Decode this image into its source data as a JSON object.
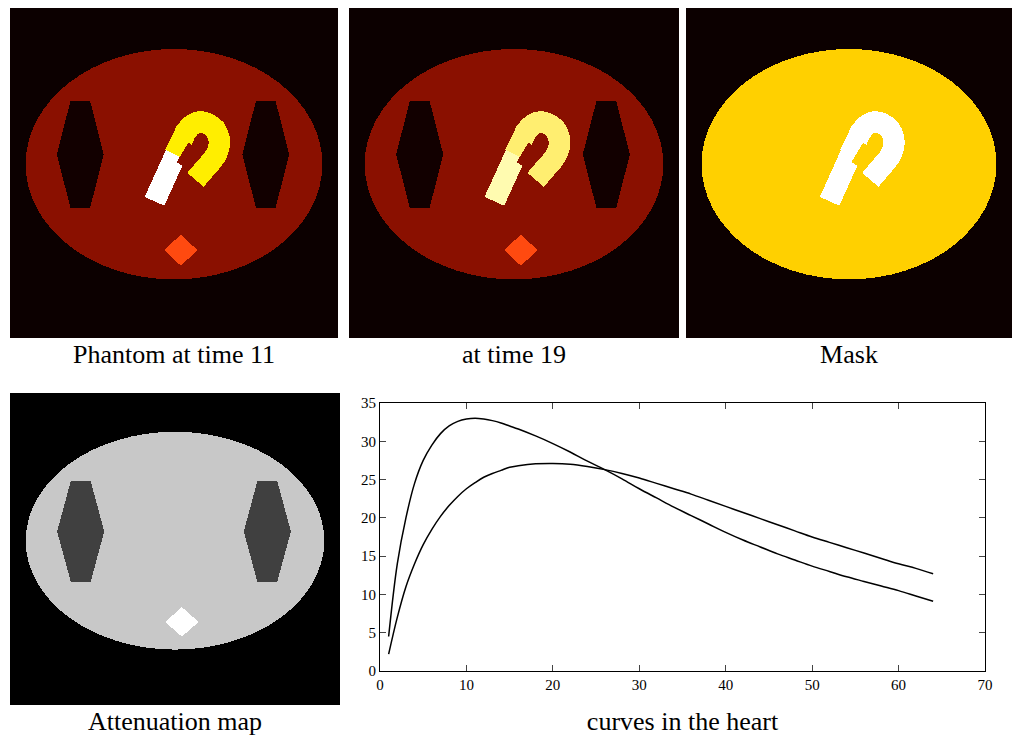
{
  "panels": [
    {
      "caption": "Phantom at time 11"
    },
    {
      "caption": "at time 19"
    },
    {
      "caption": "Mask"
    },
    {
      "caption": "Attenuation map"
    }
  ],
  "chart_data": {
    "type": "line",
    "title": "curves in the heart",
    "xlim": [
      0,
      70
    ],
    "ylim": [
      0,
      35
    ],
    "xticks": [
      0,
      10,
      20,
      30,
      40,
      50,
      60,
      70
    ],
    "yticks": [
      0,
      5,
      10,
      15,
      20,
      25,
      30,
      35
    ],
    "grid": false,
    "x": [
      1,
      2,
      3,
      4,
      5,
      6,
      7,
      8,
      9,
      10,
      11,
      12,
      13,
      14,
      15,
      16,
      18,
      20,
      22,
      24,
      26,
      28,
      30,
      32,
      34,
      36,
      38,
      40,
      42,
      44,
      46,
      48,
      50,
      52,
      54,
      56,
      58,
      60,
      62,
      64
    ],
    "series": [
      {
        "color": "#000000",
        "values": [
          4.5,
          14,
          20,
          24.5,
          27.5,
          29.5,
          31,
          32,
          32.6,
          32.9,
          33,
          32.9,
          32.7,
          32.4,
          32,
          31.6,
          30.7,
          29.7,
          28.6,
          27.4,
          26.3,
          25.1,
          23.8,
          22.6,
          21.4,
          20.3,
          19.2,
          18.1,
          17.1,
          16.2,
          15.3,
          14.5,
          13.7,
          13.0,
          12.3,
          11.7,
          11.1,
          10.5,
          9.8,
          9.1
        ]
      },
      {
        "color": "#000000",
        "values": [
          2.2,
          7,
          11,
          14,
          16.5,
          18.5,
          20.2,
          21.6,
          22.8,
          23.8,
          24.6,
          25.3,
          25.8,
          26.2,
          26.6,
          26.8,
          27.05,
          27.1,
          27,
          26.7,
          26.3,
          25.8,
          25.2,
          24.5,
          23.8,
          23.1,
          22.3,
          21.5,
          20.7,
          19.9,
          19.1,
          18.3,
          17.5,
          16.8,
          16.1,
          15.4,
          14.7,
          14.0,
          13.4,
          12.7
        ]
      }
    ]
  }
}
